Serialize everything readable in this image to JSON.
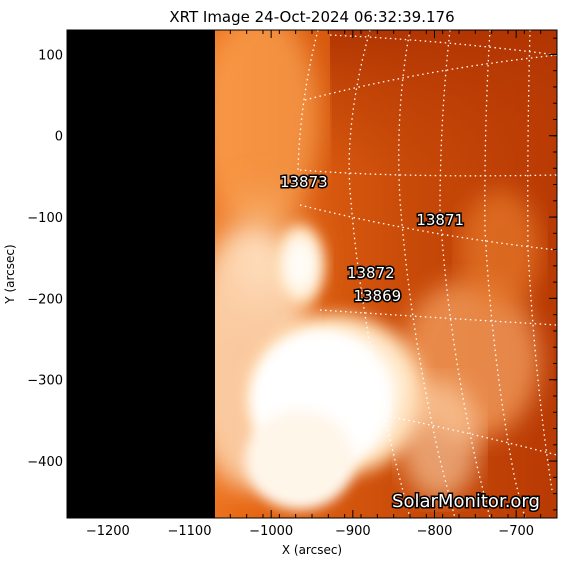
{
  "title": "XRT Image 24-Oct-2024 06:32:39.176",
  "xlabel": "X (arcsec)",
  "ylabel": "Y (arcsec)",
  "xlim": [
    -1250,
    -650
  ],
  "ylim": [
    -470,
    130
  ],
  "xticks": [
    -1200,
    -1100,
    -1000,
    -900,
    -800,
    -700
  ],
  "yticks": [
    100,
    0,
    -100,
    -200,
    -300,
    -400
  ],
  "watermark": "SolarMonitor.org",
  "colors": {
    "background": "#ffffff",
    "offdisk": "#000000",
    "grid": "#ffffff"
  },
  "regions": [
    {
      "label": "13873",
      "x": -960,
      "y": -63
    },
    {
      "label": "13871",
      "x": -793,
      "y": -110
    },
    {
      "label": "13872",
      "x": -878,
      "y": -175
    },
    {
      "label": "13869",
      "x": -870,
      "y": -203
    }
  ]
}
